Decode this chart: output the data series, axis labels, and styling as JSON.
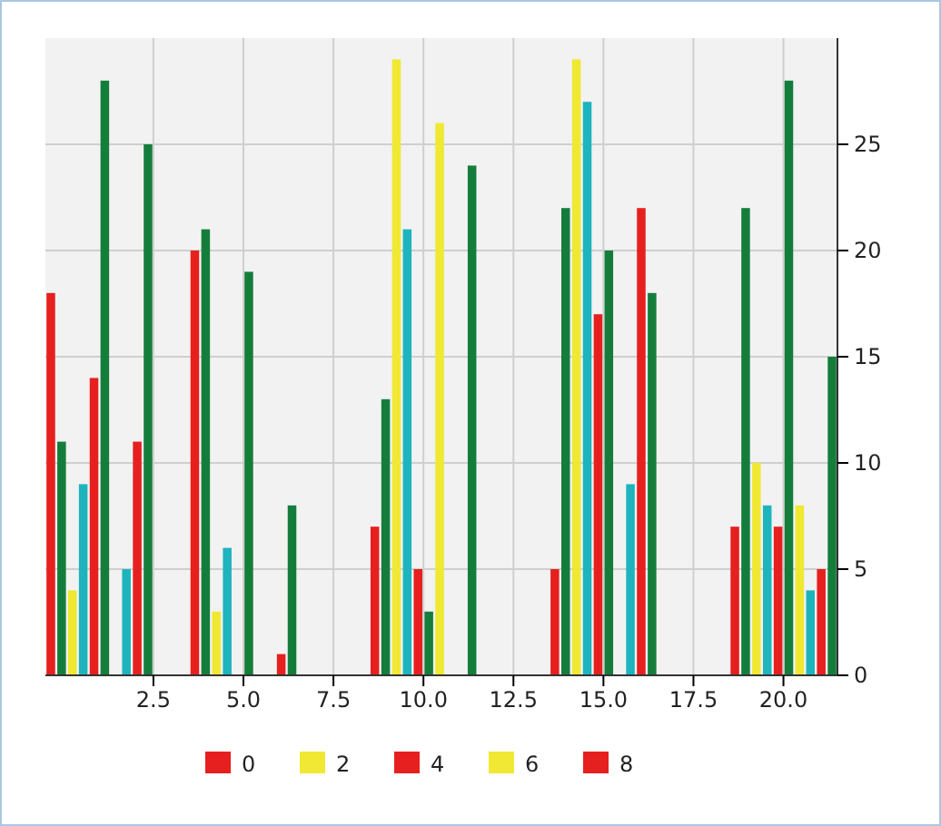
{
  "chart_data": {
    "type": "bar",
    "x": [
      1,
      5,
      10,
      15,
      20
    ],
    "series": [
      {
        "name": "0",
        "color": "#e6201e",
        "values": [
          18,
          20,
          7,
          5,
          7
        ]
      },
      {
        "color": "#147d3c",
        "values": [
          11,
          21,
          13,
          22,
          22
        ]
      },
      {
        "name": "2",
        "color": "#f0e832",
        "values": [
          4,
          3,
          29,
          29,
          10
        ]
      },
      {
        "color": "#1eb4be",
        "values": [
          9,
          6,
          21,
          27,
          8
        ]
      },
      {
        "name": "4",
        "color": "#e6201e",
        "values": [
          14,
          null,
          5,
          17,
          7
        ]
      },
      {
        "color": "#147d3c",
        "values": [
          28,
          19,
          3,
          20,
          28
        ]
      },
      {
        "name": "6",
        "color": "#f0e832",
        "values": [
          null,
          null,
          26,
          null,
          8
        ]
      },
      {
        "color": "#1eb4be",
        "values": [
          5,
          null,
          null,
          9,
          4
        ]
      },
      {
        "name": "8",
        "color": "#e6201e",
        "values": [
          11,
          1,
          null,
          22,
          5
        ]
      },
      {
        "color": "#147d3c",
        "values": [
          25,
          8,
          24,
          18,
          15
        ]
      }
    ],
    "xlim": [
      -0.5,
      21.5
    ],
    "xticks": [
      2.5,
      {
        "value": 5,
        "label": "5.0"
      },
      7.5,
      {
        "value": 10,
        "label": "10.0"
      },
      12.5,
      {
        "value": 15,
        "label": "15.0"
      },
      17.5,
      {
        "value": 20,
        "label": "20.0"
      }
    ],
    "ylim": [
      0,
      30
    ],
    "yticks": [
      0,
      5,
      10,
      15,
      20,
      25
    ],
    "grid": true,
    "legend": "bottom"
  }
}
